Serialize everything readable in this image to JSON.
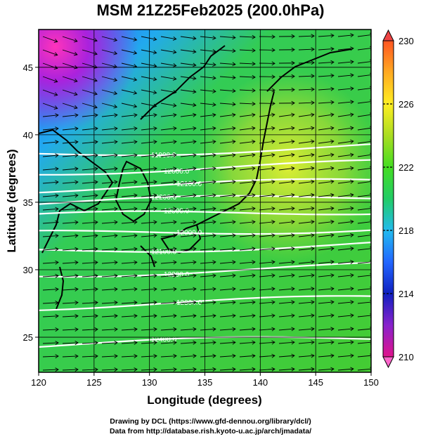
{
  "title": "MSM 21Z25Feb2025 (200.0hPa)",
  "credits": {
    "line1": "Drawing by DCL (https://www.gfd-dennou.org/library/dcl/)",
    "line2": "Data from http://database.rish.kyoto-u.ac.jp/arch/jmadata/"
  },
  "chart_data": {
    "type": "heatmap",
    "x_axis": {
      "label": "Longitude (degrees)",
      "range": [
        120,
        150
      ],
      "ticks": [
        120,
        125,
        130,
        135,
        140,
        145,
        150
      ]
    },
    "y_axis": {
      "label": "Latitude  (degrees)",
      "range": [
        22.4,
        47.8
      ],
      "ticks": [
        25,
        30,
        35,
        40,
        45
      ]
    },
    "colorbar": {
      "range": [
        210,
        230
      ],
      "ticks": [
        210,
        214,
        218,
        222,
        226,
        230
      ],
      "colors": [
        "#e0138c",
        "#8822cc",
        "#1020c0",
        "#2266ff",
        "#22bbee",
        "#22cc66",
        "#44dd22",
        "#aadd22",
        "#ffee22",
        "#ffaa22",
        "#ff5522",
        "#ee2222"
      ]
    },
    "contours": [
      {
        "value": "11900.0",
        "lat": 38.6
      },
      {
        "value": "12000.0",
        "lat": 37.3
      },
      {
        "value": "12100.0",
        "lat": 36.0
      },
      {
        "value": "12200.0",
        "lat": 34.9
      },
      {
        "value": "12300.0",
        "lat": 33.9
      },
      {
        "value": "12000.0",
        "lat": 32.6
      },
      {
        "value": "12100.0",
        "lat": 31.4
      },
      {
        "value": "12200.0",
        "lat": 29.7
      },
      {
        "value": "12300.0",
        "lat": 27.3
      },
      {
        "value": "12400.0",
        "lat": 24.4
      }
    ]
  }
}
